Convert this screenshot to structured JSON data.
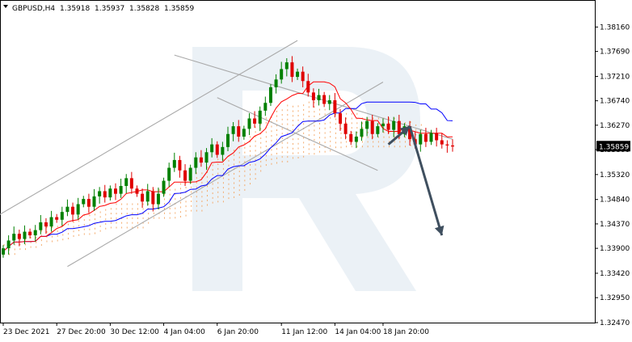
{
  "header": {
    "symbol": "GBPUSD,H4",
    "open": "1.35918",
    "high": "1.35937",
    "low": "1.35828",
    "close": "1.35859"
  },
  "chart_data": {
    "type": "candlestick",
    "symbol": "GBPUSD",
    "timeframe": "H4",
    "ohlc_header": {
      "open": 1.35918,
      "high": 1.35937,
      "low": 1.35828,
      "close": 1.35859
    },
    "current_price": 1.35859,
    "current_price_label": "1.35859",
    "ylim": [
      1.3247,
      1.384
    ],
    "y_ticks": [
      {
        "value": 1.3816,
        "label": "1.38160"
      },
      {
        "value": 1.3769,
        "label": "1.37690"
      },
      {
        "value": 1.3721,
        "label": "1.37210"
      },
      {
        "value": 1.3674,
        "label": "1.36740"
      },
      {
        "value": 1.3627,
        "label": "1.36270"
      },
      {
        "value": 1.358,
        "label": "1.35800"
      },
      {
        "value": 1.3532,
        "label": "1.35320"
      },
      {
        "value": 1.3484,
        "label": "1.34840"
      },
      {
        "value": 1.3437,
        "label": "1.34370"
      },
      {
        "value": 1.339,
        "label": "1.33900"
      },
      {
        "value": 1.3342,
        "label": "1.33420"
      },
      {
        "value": 1.3295,
        "label": "1.32950"
      },
      {
        "value": 1.3247,
        "label": "1.32470"
      }
    ],
    "x_ticks": [
      "23 Dec 2021",
      "27 Dec 20:00",
      "30 Dec 12:00",
      "4 Jan 04:00",
      "6 Jan 20:00",
      "11 Jan 12:00",
      "14 Jan 04:00",
      "18 Jan 20:00"
    ],
    "x_tick_bar_index": [
      0,
      10,
      20,
      30,
      40,
      52,
      62,
      71
    ],
    "bar_count": 85,
    "series": [
      {
        "kind": "candles",
        "closes": [
          1.339,
          1.3405,
          1.3418,
          1.3408,
          1.3422,
          1.3415,
          1.3425,
          1.344,
          1.3432,
          1.345,
          1.3445,
          1.346,
          1.347,
          1.3455,
          1.3475,
          1.3485,
          1.347,
          1.349,
          1.35,
          1.3488,
          1.3505,
          1.3495,
          1.351,
          1.3525,
          1.3505,
          1.3495,
          1.348,
          1.35,
          1.3475,
          1.3495,
          1.352,
          1.3545,
          1.356,
          1.354,
          1.352,
          1.3545,
          1.3565,
          1.3555,
          1.3575,
          1.359,
          1.357,
          1.3585,
          1.361,
          1.3625,
          1.3605,
          1.362,
          1.364,
          1.363,
          1.3655,
          1.367,
          1.37,
          1.3715,
          1.3735,
          1.3748,
          1.372,
          1.373,
          1.3712,
          1.369,
          1.3675,
          1.3685,
          1.3668,
          1.3675,
          1.365,
          1.363,
          1.361,
          1.3595,
          1.3605,
          1.362,
          1.3635,
          1.361,
          1.3625,
          1.363,
          1.3618,
          1.3635,
          1.361,
          1.3625,
          1.36,
          1.359,
          1.361,
          1.3595,
          1.3612,
          1.3598,
          1.359,
          1.3588,
          1.3586
        ]
      },
      {
        "kind": "ichimoku-tenkan",
        "color": "#ff0000"
      },
      {
        "kind": "ichimoku-kijun",
        "color": "#0000ff"
      },
      {
        "kind": "ichimoku-cloud",
        "color": "#f4a460"
      }
    ],
    "annotations": {
      "channel_upper_left": {
        "x_bar": -2,
        "y": 1.3447
      },
      "channel_upper_right": {
        "x_bar": 55,
        "y": 1.379
      },
      "channel_lower_left": {
        "x_bar": 12,
        "y": 1.3355
      },
      "channel_lower_right": {
        "x_bar": 71,
        "y": 1.371
      },
      "desc_channel_upper_left": {
        "x_bar": 32,
        "y": 1.3762
      },
      "desc_channel_upper_right": {
        "x_bar": 84,
        "y": 1.36
      },
      "desc_channel_lower_left": {
        "x_bar": 40,
        "y": 1.368
      },
      "desc_channel_lower_right": {
        "x_bar": 70,
        "y": 1.354
      },
      "arrow_up": {
        "from": {
          "x_bar": 72,
          "y": 1.359
        },
        "to": {
          "x_bar": 76,
          "y": 1.3625
        }
      },
      "arrow_down": {
        "from": {
          "x_bar": 76,
          "y": 1.3625
        },
        "to": {
          "x_bar": 82,
          "y": 1.3415
        }
      }
    },
    "grid": false,
    "legend": "none"
  }
}
